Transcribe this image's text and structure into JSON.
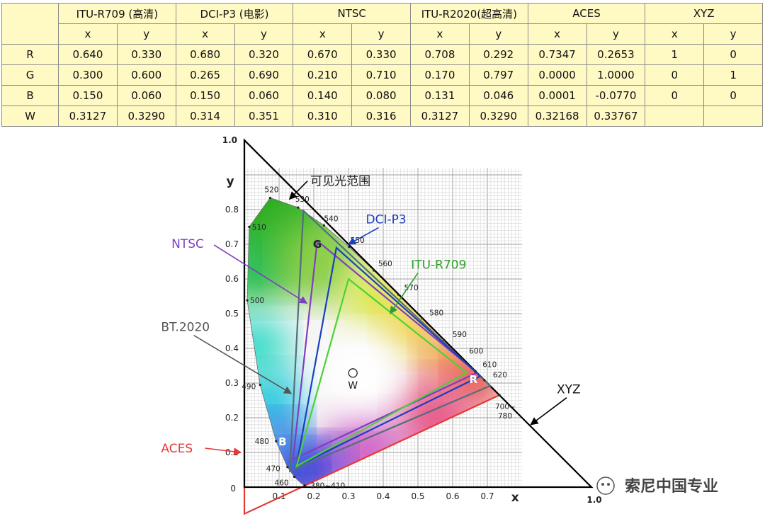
{
  "table": {
    "column_groups": [
      "ITU-R709 (高清)",
      "DCI-P3 (电影)",
      "NTSC",
      "ITU-R2020(超高清)",
      "ACES",
      "XYZ"
    ],
    "subcols": [
      "x",
      "y"
    ],
    "rows": [
      {
        "label": "R",
        "values": [
          "0.640",
          "0.330",
          "0.680",
          "0.320",
          "0.670",
          "0.330",
          "0.708",
          "0.292",
          "0.7347",
          "0.2653",
          "1",
          "0"
        ]
      },
      {
        "label": "G",
        "values": [
          "0.300",
          "0.600",
          "0.265",
          "0.690",
          "0.210",
          "0.710",
          "0.170",
          "0.797",
          "0.0000",
          "1.0000",
          "0",
          "1"
        ]
      },
      {
        "label": "B",
        "values": [
          "0.150",
          "0.060",
          "0.150",
          "0.060",
          "0.140",
          "0.080",
          "0.131",
          "0.046",
          "0.0001",
          "-0.0770",
          "0",
          "0"
        ]
      },
      {
        "label": "W",
        "values": [
          "0.3127",
          "0.3290",
          "0.314",
          "0.351",
          "0.310",
          "0.316",
          "0.3127",
          "0.3290",
          "0.32168",
          "0.33767",
          "",
          ""
        ]
      }
    ]
  },
  "diagram": {
    "axis_x_label": "x",
    "axis_y_label": "y",
    "x_end_label": "1.0",
    "y_end_label": "1.0",
    "origin_label": "0",
    "x_ticks": [
      {
        "v": 0.1,
        "label": "0.1"
      },
      {
        "v": 0.2,
        "label": "0.2"
      },
      {
        "v": 0.3,
        "label": "0.3"
      },
      {
        "v": 0.4,
        "label": "0.4"
      },
      {
        "v": 0.5,
        "label": "0.5"
      },
      {
        "v": 0.6,
        "label": "0.6"
      },
      {
        "v": 0.7,
        "label": "0.7"
      }
    ],
    "y_ticks": [
      {
        "v": 0.1,
        "label": "0.1"
      },
      {
        "v": 0.2,
        "label": "0.2"
      },
      {
        "v": 0.3,
        "label": "0.3"
      },
      {
        "v": 0.4,
        "label": "0.4"
      },
      {
        "v": 0.5,
        "label": "0.5"
      },
      {
        "v": 0.6,
        "label": "0.6"
      },
      {
        "v": 0.7,
        "label": "0.7"
      },
      {
        "v": 0.8,
        "label": "0.8"
      }
    ],
    "spectral_locus": [
      [
        0.1741,
        0.005
      ],
      [
        0.1738,
        0.0049
      ],
      [
        0.1733,
        0.0048
      ],
      [
        0.1726,
        0.0048
      ],
      [
        0.1714,
        0.0051
      ],
      [
        0.1689,
        0.0069
      ],
      [
        0.1644,
        0.0109
      ],
      [
        0.1566,
        0.0177
      ],
      [
        0.144,
        0.0297
      ],
      [
        0.1241,
        0.0578
      ],
      [
        0.0913,
        0.1327
      ],
      [
        0.0454,
        0.295
      ],
      [
        0.0082,
        0.5384
      ],
      [
        0.0139,
        0.7502
      ],
      [
        0.0743,
        0.8338
      ],
      [
        0.1547,
        0.8059
      ],
      [
        0.2296,
        0.7543
      ],
      [
        0.3016,
        0.6923
      ],
      [
        0.3731,
        0.6245
      ],
      [
        0.4441,
        0.5547
      ],
      [
        0.5125,
        0.4866
      ],
      [
        0.5752,
        0.4242
      ],
      [
        0.627,
        0.3725
      ],
      [
        0.6658,
        0.334
      ],
      [
        0.6915,
        0.3083
      ],
      [
        0.7079,
        0.292
      ],
      [
        0.719,
        0.2809
      ],
      [
        0.726,
        0.274
      ],
      [
        0.7347,
        0.2653
      ]
    ],
    "wavelengths": [
      {
        "label": "520",
        "x": 0.0743,
        "y": 0.8338,
        "dx": -8,
        "dy": -8
      },
      {
        "label": "530",
        "x": 0.1547,
        "y": 0.8059,
        "dx": -4,
        "dy": -8
      },
      {
        "label": "540",
        "x": 0.2296,
        "y": 0.7543,
        "dx": 0,
        "dy": -6
      },
      {
        "label": "550",
        "x": 0.3016,
        "y": 0.6923,
        "dx": 2,
        "dy": -6
      },
      {
        "label": "560",
        "x": 0.3731,
        "y": 0.6245,
        "dx": 6,
        "dy": -6
      },
      {
        "label": "570",
        "x": 0.4441,
        "y": 0.5547,
        "dx": 8,
        "dy": -6
      },
      {
        "label": "580",
        "x": 0.5125,
        "y": 0.4866,
        "dx": 10,
        "dy": -4
      },
      {
        "label": "590",
        "x": 0.5752,
        "y": 0.4242,
        "dx": 12,
        "dy": -4
      },
      {
        "label": "600",
        "x": 0.627,
        "y": 0.3725,
        "dx": 10,
        "dy": -6
      },
      {
        "label": "610",
        "x": 0.6658,
        "y": 0.334,
        "dx": 10,
        "dy": -6
      },
      {
        "label": "620",
        "x": 0.6915,
        "y": 0.3083,
        "dx": 12,
        "dy": -4
      },
      {
        "label": "700~",
        "x": 0.7347,
        "y": 0.2653,
        "dx": -6,
        "dy": 20
      },
      {
        "label": "780",
        "x": 0.7347,
        "y": 0.2653,
        "dx": -2,
        "dy": 33
      },
      {
        "label": "510",
        "x": 0.0139,
        "y": 0.7502,
        "dx": 4,
        "dy": 4
      },
      {
        "label": "500",
        "x": 0.0082,
        "y": 0.5384,
        "dx": 4,
        "dy": 4
      },
      {
        "label": "490",
        "x": 0.0454,
        "y": 0.295,
        "dx": -26,
        "dy": 6
      },
      {
        "label": "480",
        "x": 0.0913,
        "y": 0.1327,
        "dx": -30,
        "dy": 4
      },
      {
        "label": "470",
        "x": 0.1241,
        "y": 0.0578,
        "dx": -30,
        "dy": 6
      },
      {
        "label": "460",
        "x": 0.144,
        "y": 0.0297,
        "dx": -28,
        "dy": 12
      },
      {
        "label": "380~410",
        "x": 0.1741,
        "y": 0.005,
        "dx": 8,
        "dy": 4
      }
    ],
    "gamuts": [
      {
        "name": "ACES",
        "color": "#e53935",
        "points": [
          [
            0.7347,
            0.2653
          ],
          [
            0.0,
            1.0
          ],
          [
            0.0001,
            -0.077
          ]
        ]
      },
      {
        "name": "XYZ",
        "color": "#000000",
        "points": [
          [
            1,
            0
          ],
          [
            0,
            1
          ],
          [
            0,
            0
          ]
        ]
      },
      {
        "name": "BT.2020",
        "color": "#546e7a",
        "points": [
          [
            0.708,
            0.292
          ],
          [
            0.17,
            0.797
          ],
          [
            0.131,
            0.046
          ]
        ]
      },
      {
        "name": "NTSC",
        "color": "#7e3fbf",
        "points": [
          [
            0.67,
            0.33
          ],
          [
            0.21,
            0.71
          ],
          [
            0.14,
            0.08
          ]
        ]
      },
      {
        "name": "DCI-P3",
        "color": "#1a3fbf",
        "points": [
          [
            0.68,
            0.32
          ],
          [
            0.265,
            0.69
          ],
          [
            0.15,
            0.06
          ]
        ]
      },
      {
        "name": "ITU-R709",
        "color": "#4cd136",
        "points": [
          [
            0.64,
            0.33
          ],
          [
            0.3,
            0.6
          ],
          [
            0.15,
            0.06
          ]
        ]
      }
    ],
    "white_point": {
      "label": "W",
      "x": 0.3127,
      "y": 0.329
    },
    "vertex_labels": [
      {
        "label": "G",
        "x": 0.21,
        "y": 0.69
      },
      {
        "label": "R",
        "x": 0.66,
        "y": 0.3
      },
      {
        "label": "B",
        "x": 0.11,
        "y": 0.12
      }
    ],
    "annotations": [
      {
        "text": "可见光范围",
        "color": "#222222",
        "tx": 0.19,
        "ty": 0.87,
        "ax": 0.13,
        "ay": 0.83,
        "anchor": "start",
        "line": "black"
      },
      {
        "text": "DCI-P3",
        "color": "#1a3fbf",
        "tx": 0.35,
        "ty": 0.76,
        "ax": 0.3,
        "ay": 0.7,
        "anchor": "start",
        "line": "#1a3fbf"
      },
      {
        "text": "NTSC",
        "color": "#7e3fbf",
        "tx": -0.21,
        "ty": 0.69,
        "ax": 0.18,
        "ay": 0.53,
        "anchor": "start",
        "line": "#7e3fbf"
      },
      {
        "text": "ITU-R709",
        "color": "#2e9e2e",
        "tx": 0.48,
        "ty": 0.63,
        "ax": 0.42,
        "ay": 0.5,
        "anchor": "start",
        "line": "#2e9e2e"
      },
      {
        "text": "BT.2020",
        "color": "#555555",
        "tx": -0.24,
        "ty": 0.45,
        "ax": 0.135,
        "ay": 0.27,
        "anchor": "start",
        "line": "#555555"
      },
      {
        "text": "ACES",
        "color": "#e53935",
        "tx": -0.24,
        "ty": 0.1,
        "ax": -0.01,
        "ay": 0.1,
        "anchor": "start",
        "line": "#e53935"
      },
      {
        "text": "XYZ",
        "color": "#111111",
        "tx": 0.9,
        "ty": 0.27,
        "ax": 0.825,
        "ay": 0.18,
        "anchor": "start",
        "line": "black"
      }
    ],
    "watermark": "索尼中国专业"
  }
}
